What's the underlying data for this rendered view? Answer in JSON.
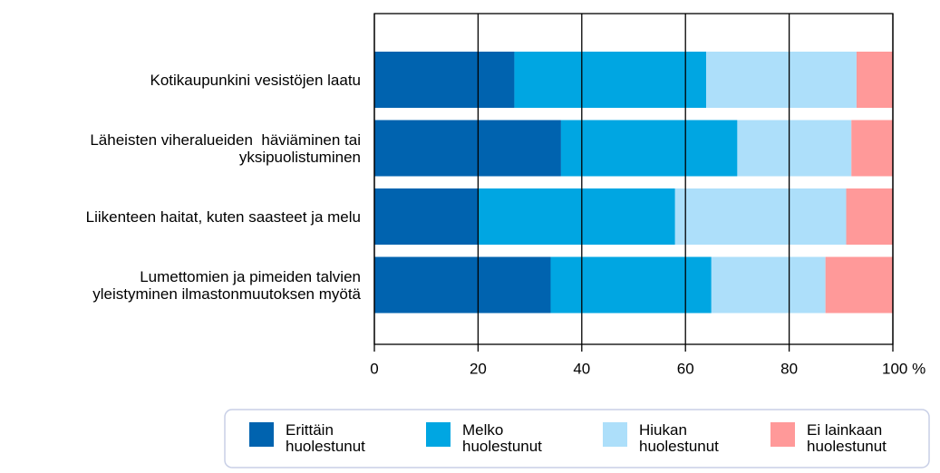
{
  "chart_data": {
    "type": "stacked_bar_horizontal",
    "categories": [
      "Kotikaupunkini vesistöjen laatu",
      "Läheisten viheralueiden  häviäminen tai\nyksipuolistuminen",
      "Liikenteen haitat, kuten saasteet ja melu",
      "Lumettomien ja pimeiden talvien\nyleistyminen ilmastonmuutoksen myötä"
    ],
    "series": [
      {
        "name": "Erittäin\nhuolestunut",
        "color": "#0063af",
        "values": [
          27,
          36,
          20,
          34
        ]
      },
      {
        "name": "Melko\nhuolestunut",
        "color": "#00a6e2",
        "values": [
          37,
          34,
          38,
          31
        ]
      },
      {
        "name": "Hiukan\nhuolestunut",
        "color": "#addffa",
        "values": [
          29,
          22,
          33,
          22
        ]
      },
      {
        "name": "Ei lainkaan\nhuolestunut",
        "color": "#ff9999",
        "values": [
          7,
          8,
          9,
          13
        ]
      }
    ],
    "xlim": [
      0,
      100
    ],
    "xticks": [
      0,
      20,
      40,
      60,
      80,
      {
        "value": 100,
        "label": "100 %"
      }
    ],
    "grid": true,
    "legend": "bottom"
  }
}
